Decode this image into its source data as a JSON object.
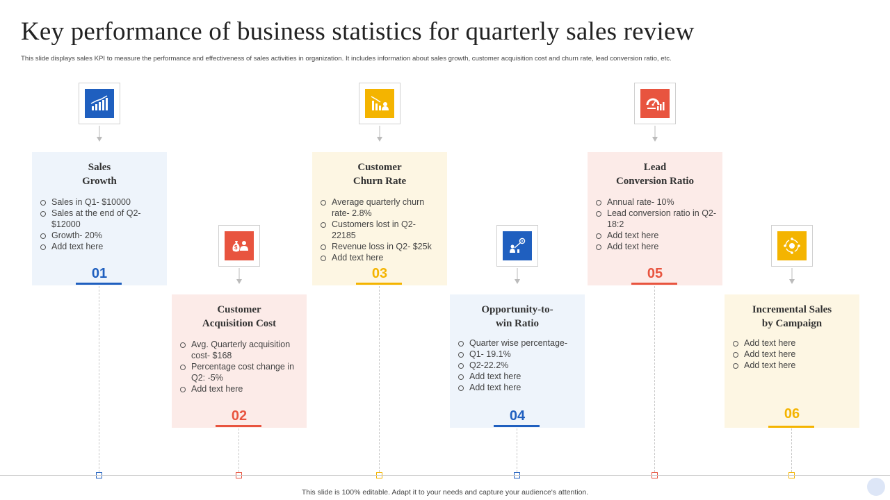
{
  "title": "Key performance of business statistics for quarterly sales review",
  "subtitle": "This slide displays sales KPI to measure the performance and effectiveness of sales activities in organization. It includes information about sales growth, customer acquisition cost and churn rate, lead conversion ratio, etc.",
  "footer": "This slide is 100% editable.  Adapt it to your needs and capture your audience's attention.",
  "colors": {
    "blue": "#1f5fbf",
    "red": "#e8543f",
    "yellow": "#f4b400",
    "card_blue": "#eef4fb",
    "card_red": "#fcebe8",
    "card_yellow": "#fdf6e3"
  },
  "cards": [
    {
      "number": "01",
      "title_line1": "Sales",
      "title_line2": "Growth",
      "icon": "bar-chart-growth-icon",
      "items": [
        "Sales in Q1- $10000",
        "Sales at the end of Q2- $12000",
        "Growth- 20%",
        "Add text here"
      ]
    },
    {
      "number": "02",
      "title_line1": "Customer",
      "title_line2": "Acquisition  Cost",
      "icon": "money-bag-user-icon",
      "items": [
        "Avg. Quarterly acquisition cost- $168",
        "Percentage cost change in Q2: -5%",
        "Add text here"
      ]
    },
    {
      "number": "03",
      "title_line1": "Customer",
      "title_line2": "Churn  Rate",
      "icon": "chart-down-user-icon",
      "items": [
        "Average  quarterly churn rate- 2.8%",
        "Customers lost in Q2- 22185",
        "Revenue  loss in Q2- $25k",
        "Add text here"
      ]
    },
    {
      "number": "04",
      "title_line1": "Opportunity-to-",
      "title_line2": "win  Ratio",
      "icon": "target-growth-icon",
      "items": [
        "Quarter wise percentage-",
        "Q1- 19.1%",
        "Q2-22.2%",
        "Add text here",
        "Add text here"
      ]
    },
    {
      "number": "05",
      "title_line1": "Lead",
      "title_line2": "Conversion Ratio",
      "icon": "gauge-chart-icon",
      "items": [
        "Annual rate- 10%",
        "Lead conversion  ratio in Q2- 18:2",
        "Add text here",
        "Add text here"
      ]
    },
    {
      "number": "06",
      "title_line1": "Incremental Sales",
      "title_line2": "by Campaign",
      "icon": "campaign-cycle-icon",
      "items": [
        "Add text here",
        "Add text here",
        "Add text here"
      ]
    }
  ]
}
